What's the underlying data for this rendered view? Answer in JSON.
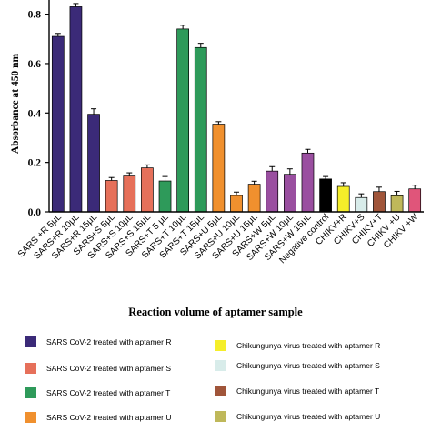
{
  "chart_data": {
    "type": "bar",
    "ylabel": "Absorbance at 450 nm",
    "xlabel": "Reaction volume of aptamer sample",
    "ylim": [
      0,
      0.85
    ],
    "yticks": [
      "0.0",
      "0.2",
      "0.4",
      "0.6",
      "0.8"
    ],
    "categories": [
      "SARS +R 5μL",
      "SARS+R 10μL",
      "SARS+R 15μL",
      "SARS+S 5μL",
      "SARS+S 10μL",
      "SARS+S 15μL",
      "SARS+T 5 μL",
      "SARS+T 10μL",
      "SARS+T 15μL",
      "SARS+U 5μL",
      "SARS+U 10μL",
      "SARS+U 15μL",
      "SARS+W 5μL",
      "SARS+W 10μL",
      "SARS+W 15μL",
      "Negative control",
      "CHIKV+R",
      "CHIKV+S",
      "CHIKV+T",
      "CHIKV +U",
      "CHIKV +W"
    ],
    "values": [
      0.71,
      0.83,
      0.395,
      0.127,
      0.145,
      0.178,
      0.125,
      0.74,
      0.665,
      0.355,
      0.066,
      0.112,
      0.165,
      0.152,
      0.238,
      0.133,
      0.103,
      0.058,
      0.082,
      0.065,
      0.093
    ],
    "errors": [
      0.012,
      0.013,
      0.022,
      0.012,
      0.013,
      0.012,
      0.018,
      0.015,
      0.017,
      0.01,
      0.014,
      0.012,
      0.018,
      0.022,
      0.015,
      0.01,
      0.015,
      0.015,
      0.018,
      0.018,
      0.015
    ],
    "colors": [
      "#3b2a78",
      "#3b2a78",
      "#3b2a78",
      "#e6705a",
      "#e6705a",
      "#e6705a",
      "#2e9a5a",
      "#2e9a5a",
      "#2e9a5a",
      "#f0902e",
      "#f0902e",
      "#f0902e",
      "#9a4fa0",
      "#9a4fa0",
      "#9a4fa0",
      "#000000",
      "#f5ee2a",
      "#d8ecea",
      "#a0553a",
      "#bfb85a",
      "#e0557a"
    ],
    "legend": [
      {
        "label": "SARS CoV-2 treated with aptamer R",
        "color": "#3b2a78"
      },
      {
        "label": "SARS CoV-2 treated with aptamer S",
        "color": "#e6705a"
      },
      {
        "label": "SARS CoV-2 treated with aptamer T",
        "color": "#2e9a5a"
      },
      {
        "label": "SARS CoV-2 treated with aptamer U",
        "color": "#f0902e"
      },
      {
        "label": "Chikungunya virus treated with aptamer R",
        "color": "#f5ee2a"
      },
      {
        "label": "Chikungunya virus treated with aptamer S",
        "color": "#d8ecea"
      },
      {
        "label": "Chikungunya virus treated with aptamer T",
        "color": "#a0553a"
      },
      {
        "label": "Chikungunya virus treated with aptamer U",
        "color": "#bfb85a"
      }
    ]
  }
}
